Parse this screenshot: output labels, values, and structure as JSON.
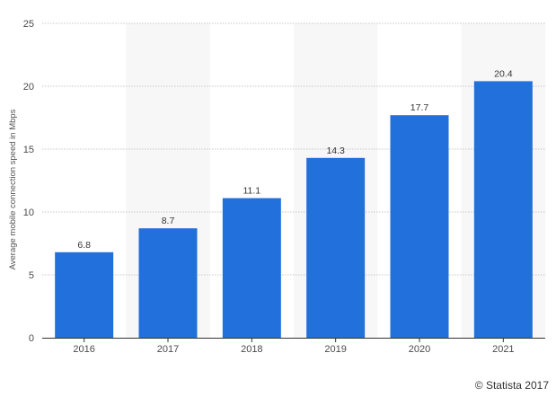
{
  "chart_data": {
    "type": "bar",
    "title": "",
    "xlabel": "",
    "ylabel": "Average mobile connection speed in Mbps",
    "categories": [
      "2016",
      "2017",
      "2018",
      "2019",
      "2020",
      "2021"
    ],
    "values": [
      6.8,
      8.7,
      11.1,
      14.3,
      17.7,
      20.4
    ],
    "value_labels": [
      "6.8",
      "8.7",
      "11.1",
      "14.3",
      "17.7",
      "20.4"
    ],
    "ylim": [
      0,
      25
    ],
    "yticks": [
      0,
      5,
      10,
      15,
      20,
      25
    ],
    "grid": true,
    "legend": "none"
  },
  "colors": {
    "bar": "#2270db",
    "band": "#f7f7f7",
    "grid": "#c8c8c8",
    "axis": "#333333"
  },
  "credit": "© Statista 2017"
}
